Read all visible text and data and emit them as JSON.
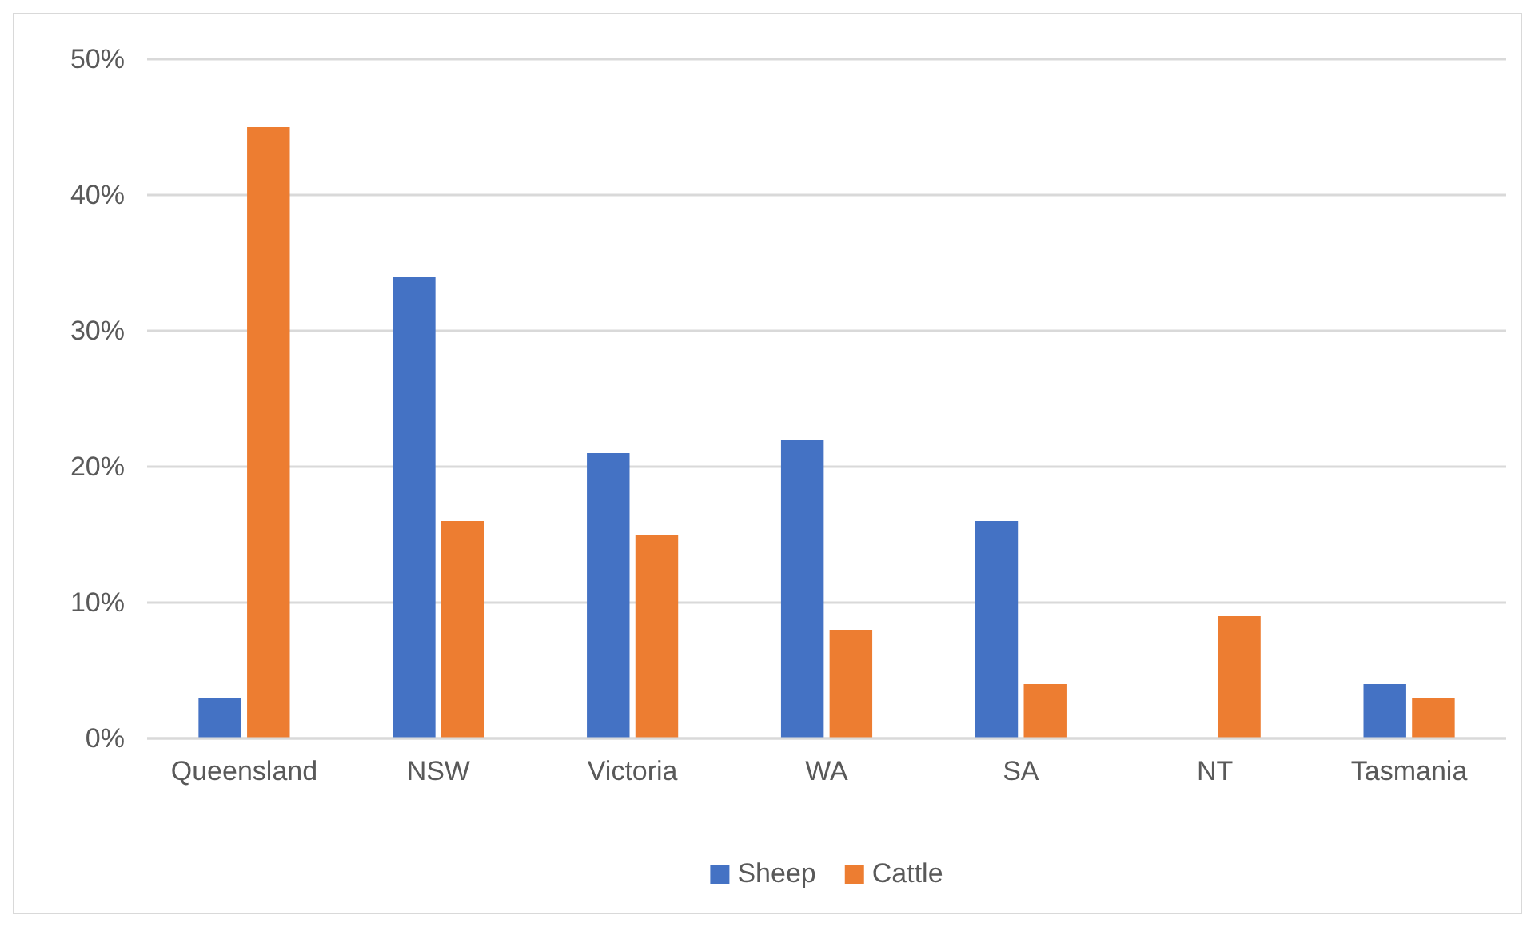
{
  "chart_data": {
    "type": "bar",
    "categories": [
      "Queensland",
      "NSW",
      "Victoria",
      "WA",
      "SA",
      "NT",
      "Tasmania"
    ],
    "series": [
      {
        "name": "Sheep",
        "color": "#4472c4",
        "values": [
          3,
          34,
          21,
          22,
          16,
          0,
          4
        ]
      },
      {
        "name": "Cattle",
        "color": "#ed7d31",
        "values": [
          45,
          16,
          15,
          8,
          4,
          9,
          3
        ]
      }
    ],
    "ylim": [
      0,
      50
    ],
    "yticks": [
      {
        "value": 0,
        "label": "0%"
      },
      {
        "value": 10,
        "label": "10%"
      },
      {
        "value": 20,
        "label": "20%"
      },
      {
        "value": 30,
        "label": "30%"
      },
      {
        "value": 40,
        "label": "40%"
      },
      {
        "value": 50,
        "label": "50%"
      }
    ],
    "grid": "y",
    "legend": "bottom"
  }
}
